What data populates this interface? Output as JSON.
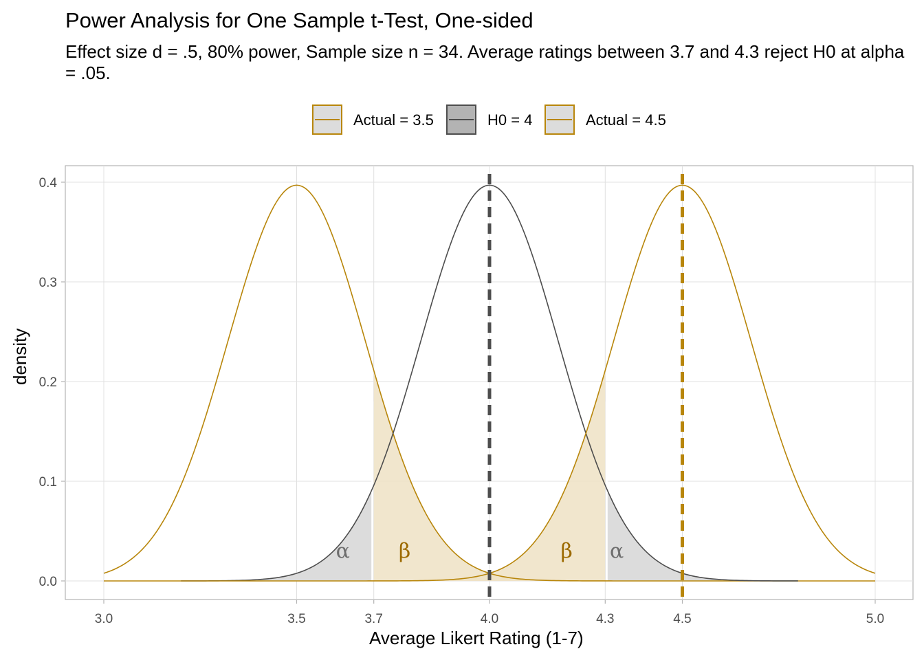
{
  "header": {
    "title": "Power Analysis for One Sample t-Test, One-sided",
    "subtitle": "Effect size d = .5, 80% power, Sample size n = 34. Average ratings between 3.7 and 4.3 reject H0 at alpha = .05."
  },
  "colors": {
    "gold": "#B8860B",
    "gold_fill": "#EEE2C4",
    "h0_line": "#4D4D4D",
    "h0_fill": "#DCDCDC",
    "grid": "#E0E0E0",
    "panel_border": "#B3B3B3",
    "tick_text": "#4D4D4D"
  },
  "chart_data": {
    "type": "area",
    "title": "Power Analysis for One Sample t-Test, One-sided",
    "subtitle": "Effect size d = .5, 80% power, Sample size n = 34. Average ratings between 3.7 and 4.3 reject H0 at alpha = .05.",
    "xlabel": "Average Likert Rating (1-7)",
    "ylabel": "density",
    "xlim": [
      3.0,
      5.0
    ],
    "ylim": [
      0,
      0.4
    ],
    "x_ticks": [
      3.0,
      3.5,
      3.7,
      4.0,
      4.3,
      4.5,
      5.0
    ],
    "x_tick_labels": [
      "3.0",
      "3.5",
      "3.7",
      "4.0",
      "4.3",
      "4.5",
      "5.0"
    ],
    "y_ticks": [
      0.0,
      0.1,
      0.2,
      0.3,
      0.4
    ],
    "y_tick_labels": [
      "0.0",
      "0.1",
      "0.2",
      "0.3",
      "0.4"
    ],
    "grid": true,
    "legend_position": "top",
    "series": [
      {
        "name": "Actual = 3.5",
        "distribution": "normal",
        "mean": 3.5,
        "peak_density": 0.397,
        "x_range": [
          3.0,
          5.0
        ],
        "color": "#B8860B"
      },
      {
        "name": "H0 = 4",
        "distribution": "normal",
        "mean": 4.0,
        "peak_density": 0.397,
        "x_range": [
          3.2,
          4.8
        ],
        "color": "#4D4D4D"
      },
      {
        "name": "Actual = 4.5",
        "distribution": "normal",
        "mean": 4.5,
        "peak_density": 0.397,
        "x_range": [
          3.0,
          5.0
        ],
        "color": "#B8860B"
      }
    ],
    "shaded_regions": [
      {
        "label": "α",
        "series": "H0 = 4",
        "x_from": 3.2,
        "x_to": 3.7
      },
      {
        "label": "β",
        "series": "Actual = 3.5",
        "x_from": 3.7,
        "x_to": 5.0
      },
      {
        "label": "β",
        "series": "Actual = 4.5",
        "x_from": 3.0,
        "x_to": 4.3
      },
      {
        "label": "α",
        "series": "H0 = 4",
        "x_from": 4.3,
        "x_to": 4.8
      }
    ],
    "annotations": [
      {
        "text": "α",
        "x": 3.62,
        "y": 0.03
      },
      {
        "text": "β",
        "x": 3.78,
        "y": 0.03
      },
      {
        "text": "β",
        "x": 4.2,
        "y": 0.03
      },
      {
        "text": "α",
        "x": 4.33,
        "y": 0.03
      }
    ],
    "vlines": [
      {
        "x": 4.0,
        "style": "dashed",
        "color": "#4D4D4D"
      },
      {
        "x": 4.5,
        "style": "dashed",
        "color": "#B8860B"
      }
    ]
  }
}
